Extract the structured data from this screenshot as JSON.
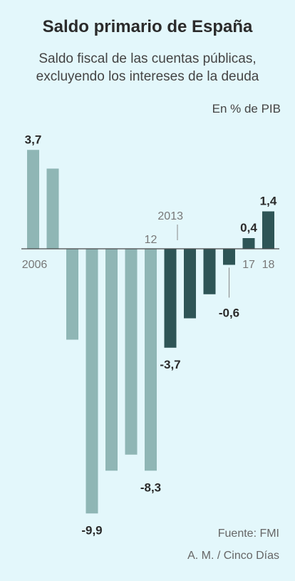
{
  "header": {
    "title": "Saldo primario de España",
    "subtitle_line1": "Saldo fiscal de las cuentas públicas,",
    "subtitle_line2": "excluyendo los intereses de la deuda",
    "unit": "En % de PIB"
  },
  "footer": {
    "source": "Fuente: FMI",
    "credit": "A. M. / Cinco Días"
  },
  "colors": {
    "background": "#e3f7fb",
    "historical_bar": "#8fb6b5",
    "forecast_bar": "#2e5556",
    "baseline": "#4a4a4a",
    "axis_text": "#777777",
    "value_text": "#2b2b2b"
  },
  "chart_data": {
    "type": "bar",
    "years": [
      2006,
      2007,
      2008,
      2009,
      2010,
      2011,
      2012,
      2013,
      2014,
      2015,
      2016,
      2017,
      2018
    ],
    "values": [
      3.7,
      3.0,
      -3.4,
      -9.9,
      -8.3,
      -7.7,
      -8.3,
      -3.7,
      -2.6,
      -1.7,
      -0.6,
      0.4,
      1.4
    ],
    "historical_until": 2012,
    "forecast_from": 2013,
    "tick_labels": [
      {
        "index": 0,
        "text": "2006",
        "position": "below-axis"
      },
      {
        "index": 6,
        "text": "12",
        "position": "above-axis"
      },
      {
        "index": 7,
        "text": "2013",
        "position": "above-axis-leader"
      },
      {
        "index": 11,
        "text": "17",
        "position": "below-axis"
      },
      {
        "index": 12,
        "text": "18",
        "position": "below-axis"
      }
    ],
    "data_labels": [
      {
        "index": 0,
        "text": "3,7"
      },
      {
        "index": 3,
        "text": "-9,9"
      },
      {
        "index": 6,
        "text": "-8,3"
      },
      {
        "index": 7,
        "text": "-3,7"
      },
      {
        "index": 10,
        "text": "-0,6"
      },
      {
        "index": 11,
        "text": "0,4"
      },
      {
        "index": 12,
        "text": "1,4"
      }
    ],
    "ylim": [
      -9.9,
      3.7
    ],
    "grid": false
  }
}
